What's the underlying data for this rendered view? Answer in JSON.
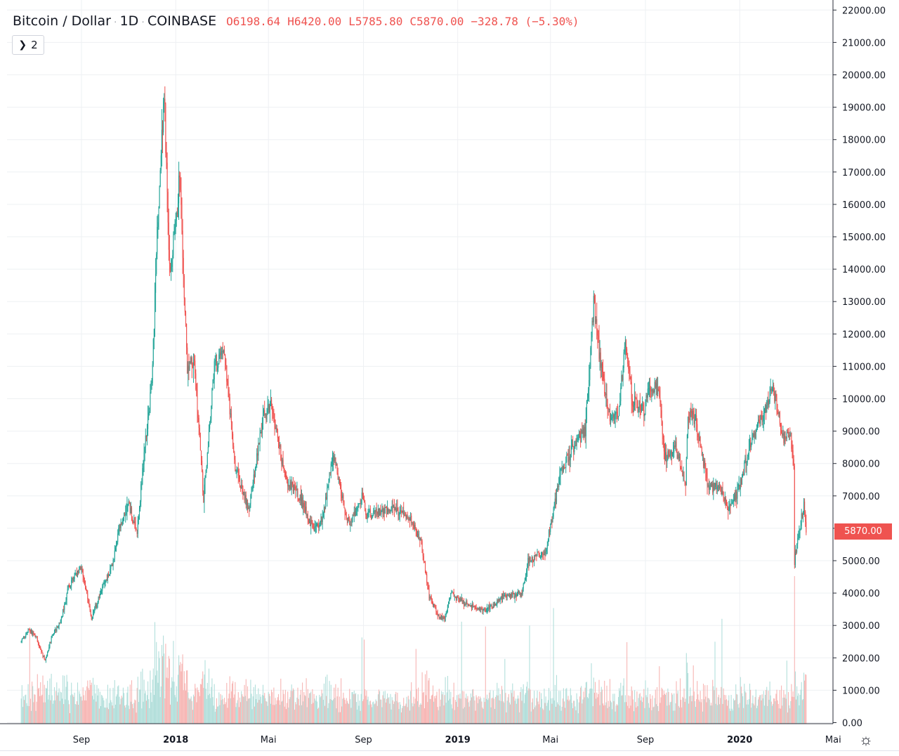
{
  "legend": {
    "symbol": "Bitcoin / Dollar",
    "interval": "1D",
    "exchange": "COINBASE",
    "open_label": "O",
    "open": "6198.64",
    "high_label": "H",
    "high": "6420.00",
    "low_label": "L",
    "low": "5785.80",
    "close_label": "C",
    "close": "5870.00",
    "change": "−328.78 (−5.30%)"
  },
  "collapse_button": {
    "label": "2"
  },
  "last_price_label": "5870.00",
  "colors": {
    "up": "#26a69a",
    "down": "#ef5350",
    "up_volume": "#b2dfdb",
    "down_volume": "#f7b6b4",
    "grid": "#eef0f3"
  },
  "icons": {
    "settings": "gear-icon",
    "collapse": "chevron-right-icon"
  },
  "chart_data": {
    "type": "candlestick",
    "interval": "1D",
    "y_axis": {
      "range": [
        0,
        22000
      ],
      "ticks": [
        "0.00",
        "1000.00",
        "2000.00",
        "3000.00",
        "4000.00",
        "5000.00",
        "6000.00",
        "7000.00",
        "8000.00",
        "9000.00",
        "10000.00",
        "11000.00",
        "12000.00",
        "13000.00",
        "14000.00",
        "15000.00",
        "16000.00",
        "17000.00",
        "18000.00",
        "19000.00",
        "20000.00",
        "21000.00",
        "22000.00"
      ]
    },
    "x_axis": {
      "range": [
        "2017-06-15",
        "2020-03-27"
      ],
      "ticks": [
        {
          "date": "2017-09-01",
          "label": "Sep",
          "bold": false
        },
        {
          "date": "2018-01-01",
          "label": "2018",
          "bold": true
        },
        {
          "date": "2018-05-01",
          "label": "Mai",
          "bold": false
        },
        {
          "date": "2018-09-01",
          "label": "Sep",
          "bold": false
        },
        {
          "date": "2019-01-01",
          "label": "2019",
          "bold": true
        },
        {
          "date": "2019-05-01",
          "label": "Mai",
          "bold": false
        },
        {
          "date": "2019-09-01",
          "label": "Sep",
          "bold": false
        },
        {
          "date": "2020-01-01",
          "label": "2020",
          "bold": true
        },
        {
          "date": "2020-05-01",
          "label": "Mai",
          "bold": false
        }
      ]
    },
    "price_path": [
      [
        "2017-06-15",
        2500
      ],
      [
        "2017-06-25",
        2900
      ],
      [
        "2017-07-05",
        2600
      ],
      [
        "2017-07-16",
        1900
      ],
      [
        "2017-07-25",
        2700
      ],
      [
        "2017-08-05",
        3100
      ],
      [
        "2017-08-15",
        4200
      ],
      [
        "2017-09-01",
        4800
      ],
      [
        "2017-09-14",
        3200
      ],
      [
        "2017-09-25",
        4000
      ],
      [
        "2017-10-10",
        4800
      ],
      [
        "2017-10-20",
        6000
      ],
      [
        "2017-11-01",
        6700
      ],
      [
        "2017-11-12",
        5900
      ],
      [
        "2017-11-20",
        8000
      ],
      [
        "2017-12-01",
        10500
      ],
      [
        "2017-12-08",
        15000
      ],
      [
        "2017-12-17",
        19500
      ],
      [
        "2017-12-24",
        14000
      ],
      [
        "2017-12-28",
        14500
      ],
      [
        "2018-01-06",
        16800
      ],
      [
        "2018-01-16",
        11000
      ],
      [
        "2018-01-25",
        11200
      ],
      [
        "2018-02-06",
        6900
      ],
      [
        "2018-02-20",
        11000
      ],
      [
        "2018-03-05",
        11500
      ],
      [
        "2018-03-18",
        8000
      ],
      [
        "2018-04-01",
        6900
      ],
      [
        "2018-04-06",
        6600
      ],
      [
        "2018-04-24",
        9400
      ],
      [
        "2018-05-05",
        9800
      ],
      [
        "2018-05-23",
        7500
      ],
      [
        "2018-06-10",
        7000
      ],
      [
        "2018-06-29",
        5900
      ],
      [
        "2018-07-10",
        6300
      ],
      [
        "2018-07-24",
        8300
      ],
      [
        "2018-08-10",
        6300
      ],
      [
        "2018-08-14",
        6100
      ],
      [
        "2018-08-30",
        7000
      ],
      [
        "2018-09-05",
        6400
      ],
      [
        "2018-09-25",
        6500
      ],
      [
        "2018-10-10",
        6600
      ],
      [
        "2018-10-25",
        6400
      ],
      [
        "2018-11-01",
        6350
      ],
      [
        "2018-11-15",
        5500
      ],
      [
        "2018-11-25",
        3900
      ],
      [
        "2018-12-07",
        3300
      ],
      [
        "2018-12-15",
        3200
      ],
      [
        "2018-12-23",
        4000
      ],
      [
        "2019-01-10",
        3700
      ],
      [
        "2019-02-01",
        3450
      ],
      [
        "2019-02-15",
        3600
      ],
      [
        "2019-02-28",
        3850
      ],
      [
        "2019-03-25",
        4000
      ],
      [
        "2019-04-02",
        5000
      ],
      [
        "2019-04-25",
        5300
      ],
      [
        "2019-05-15",
        7800
      ],
      [
        "2019-05-31",
        8500
      ],
      [
        "2019-06-15",
        9000
      ],
      [
        "2019-06-26",
        13000
      ],
      [
        "2019-07-05",
        11000
      ],
      [
        "2019-07-17",
        9500
      ],
      [
        "2019-07-28",
        9500
      ],
      [
        "2019-08-06",
        11800
      ],
      [
        "2019-08-15",
        10000
      ],
      [
        "2019-08-30",
        9600
      ],
      [
        "2019-09-06",
        10500
      ],
      [
        "2019-09-18",
        10200
      ],
      [
        "2019-09-26",
        8200
      ],
      [
        "2019-10-10",
        8500
      ],
      [
        "2019-10-23",
        7400
      ],
      [
        "2019-10-26",
        9600
      ],
      [
        "2019-11-05",
        9300
      ],
      [
        "2019-11-22",
        7200
      ],
      [
        "2019-12-05",
        7300
      ],
      [
        "2019-12-18",
        6600
      ],
      [
        "2019-12-31",
        7200
      ],
      [
        "2020-01-15",
        8700
      ],
      [
        "2020-01-28",
        9300
      ],
      [
        "2020-02-12",
        10300
      ],
      [
        "2020-02-20",
        9600
      ],
      [
        "2020-02-27",
        8800
      ],
      [
        "2020-03-07",
        8800
      ],
      [
        "2020-03-11",
        7900
      ],
      [
        "2020-03-12",
        4900
      ],
      [
        "2020-03-13",
        5200
      ],
      [
        "2020-03-20",
        6200
      ],
      [
        "2020-03-24",
        6700
      ],
      [
        "2020-03-26",
        6198.64
      ],
      [
        "2020-03-27",
        5870
      ]
    ]
  }
}
